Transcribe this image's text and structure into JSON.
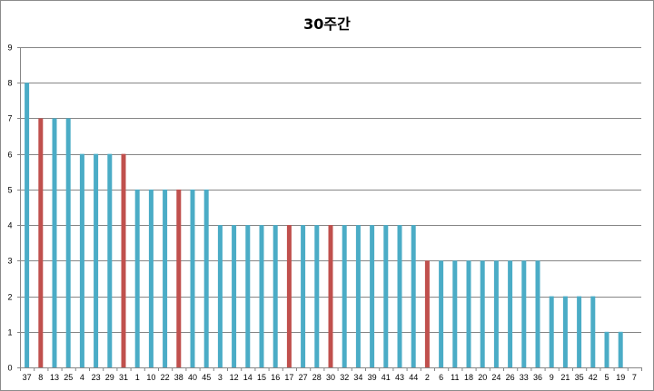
{
  "chart_data": {
    "type": "bar",
    "title": "30주간",
    "xlabel": "",
    "ylabel": "",
    "ylim": [
      0,
      9
    ],
    "yticks": [
      0,
      1,
      2,
      3,
      4,
      5,
      6,
      7,
      8,
      9
    ],
    "grid": true,
    "legend": "none",
    "colors": {
      "default": "#4bacc6",
      "highlight": "#c0504d",
      "grid": "#868686",
      "axis": "#868686"
    },
    "categories": [
      "37",
      "8",
      "13",
      "25",
      "4",
      "23",
      "29",
      "31",
      "1",
      "10",
      "22",
      "38",
      "40",
      "45",
      "3",
      "12",
      "14",
      "15",
      "16",
      "17",
      "27",
      "28",
      "30",
      "32",
      "34",
      "39",
      "41",
      "43",
      "44",
      "2",
      "6",
      "11",
      "18",
      "20",
      "24",
      "26",
      "33",
      "36",
      "9",
      "21",
      "35",
      "42",
      "5",
      "19",
      "7"
    ],
    "values": [
      8,
      7,
      7,
      7,
      6,
      6,
      6,
      6,
      5,
      5,
      5,
      5,
      5,
      5,
      4,
      4,
      4,
      4,
      4,
      4,
      4,
      4,
      4,
      4,
      4,
      4,
      4,
      4,
      4,
      3,
      3,
      3,
      3,
      3,
      3,
      3,
      3,
      3,
      2,
      2,
      2,
      2,
      1,
      1,
      0
    ],
    "highlighted": [
      "8",
      "31",
      "38",
      "17",
      "30",
      "2"
    ]
  }
}
